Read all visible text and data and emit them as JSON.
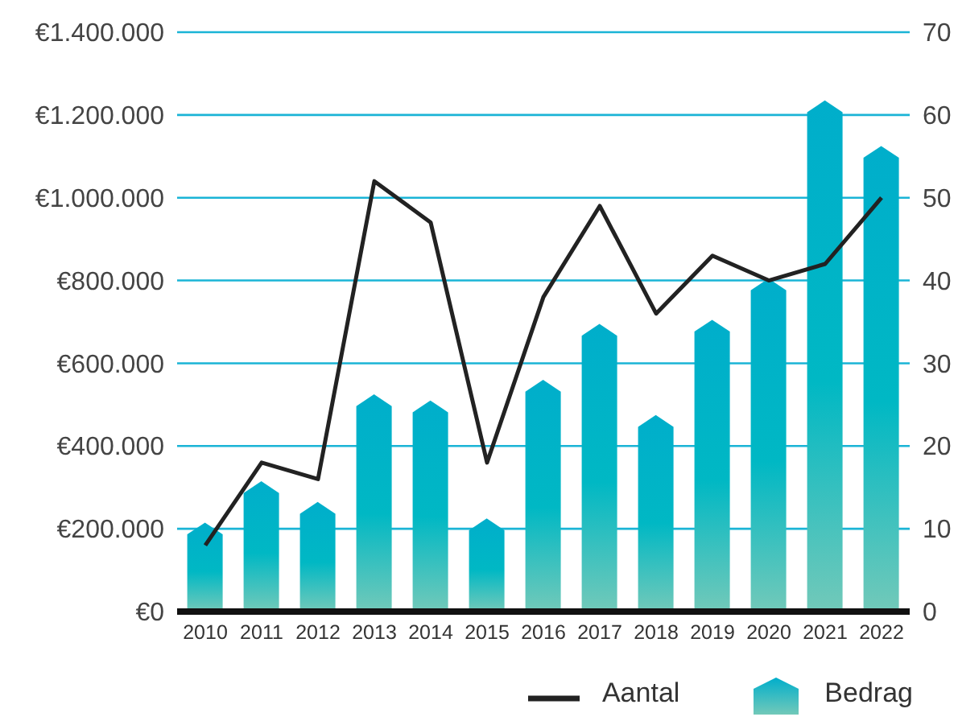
{
  "chart_data": {
    "type": "bar",
    "categories": [
      "2010",
      "2011",
      "2012",
      "2013",
      "2014",
      "2015",
      "2016",
      "2017",
      "2018",
      "2019",
      "2020",
      "2021",
      "2022"
    ],
    "series": [
      {
        "name": "Aantal",
        "type": "line",
        "axis": "y2",
        "color": "#222222",
        "values": [
          8,
          18,
          16,
          52,
          47,
          18,
          38,
          49,
          36,
          43,
          40,
          42,
          50
        ]
      },
      {
        "name": "Bedrag",
        "color": "#00aecb",
        "values": [
          215000,
          315000,
          265000,
          525000,
          510000,
          225000,
          560000,
          695000,
          475000,
          705000,
          805000,
          1235000,
          1125000
        ]
      }
    ],
    "ylim": [
      0,
      1400000
    ],
    "yticks": [
      {
        "value": 0,
        "label": "€0"
      },
      {
        "value": 200000,
        "label": "€200.000"
      },
      {
        "value": 400000,
        "label": "€400.000"
      },
      {
        "value": 600000,
        "label": "€600.000"
      },
      {
        "value": 800000,
        "label": "€800.000"
      },
      {
        "value": 1000000,
        "label": "€1.000.000"
      },
      {
        "value": 1200000,
        "label": "€1.200.000"
      },
      {
        "value": 1400000,
        "label": "€1.400.000"
      }
    ],
    "y2lim": [
      0,
      70
    ],
    "y2ticks": [
      0,
      10,
      20,
      30,
      40,
      50,
      60,
      70
    ],
    "grid": "y",
    "legend": "bottom right",
    "marker": "none",
    "line_style": "solid"
  }
}
